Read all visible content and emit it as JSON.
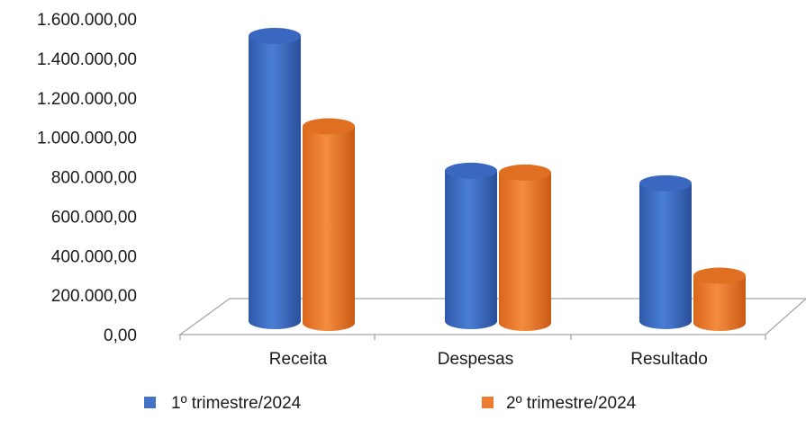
{
  "chart_data": {
    "type": "bar",
    "style": "3d-cylinder",
    "categories": [
      "Receita",
      "Despesas",
      "Resultado"
    ],
    "series": [
      {
        "name": "1º trimestre/2024",
        "color": "#4472C4",
        "values": [
          1480000,
          780000,
          715000
        ]
      },
      {
        "name": "2º trimestre/2024",
        "color": "#ED7D31",
        "values": [
          1020000,
          780000,
          245000
        ]
      }
    ],
    "ylim": [
      0,
      1600000
    ],
    "yticks": [
      "0,00",
      "200.000,00",
      "400.000,00",
      "600.000,00",
      "800.000,00",
      "1.000.000,00",
      "1.200.000,00",
      "1.400.000,00",
      "1.600.000,00"
    ],
    "grid": false,
    "legend_position": "bottom"
  }
}
